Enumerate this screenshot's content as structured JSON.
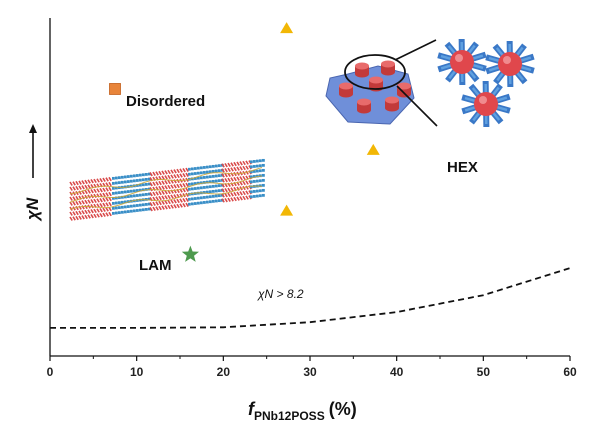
{
  "chart_data": {
    "type": "scatter",
    "title": "",
    "xlabel": {
      "f": "f",
      "sub": "PNb12POSS",
      "unit": "(%)"
    },
    "ylabel": "χN",
    "xlim": [
      0,
      60
    ],
    "xticks": [
      0,
      10,
      20,
      30,
      40,
      50,
      60
    ],
    "grid": false,
    "series": [
      {
        "name": "Disordered",
        "marker": "square",
        "color": "#E8843A",
        "points": [
          [
            7.5,
            0.79
          ]
        ]
      },
      {
        "name": "HEX",
        "marker": "triangle",
        "color": "#F2B705",
        "points": [
          [
            27.3,
            0.97
          ],
          [
            37.3,
            0.61
          ],
          [
            27.3,
            0.43
          ]
        ]
      },
      {
        "name": "LAM",
        "marker": "star",
        "color": "#4E9A4E",
        "points": [
          [
            16.2,
            0.3
          ]
        ]
      }
    ],
    "boundary": {
      "label": "χN > 8.2",
      "style": "dashed",
      "x": [
        0,
        10,
        20,
        30,
        40,
        50,
        60
      ],
      "y": [
        0.083,
        0.083,
        0.085,
        0.1,
        0.13,
        0.18,
        0.26
      ]
    },
    "annotations": [
      "Disordered",
      "LAM",
      "HEX"
    ]
  }
}
